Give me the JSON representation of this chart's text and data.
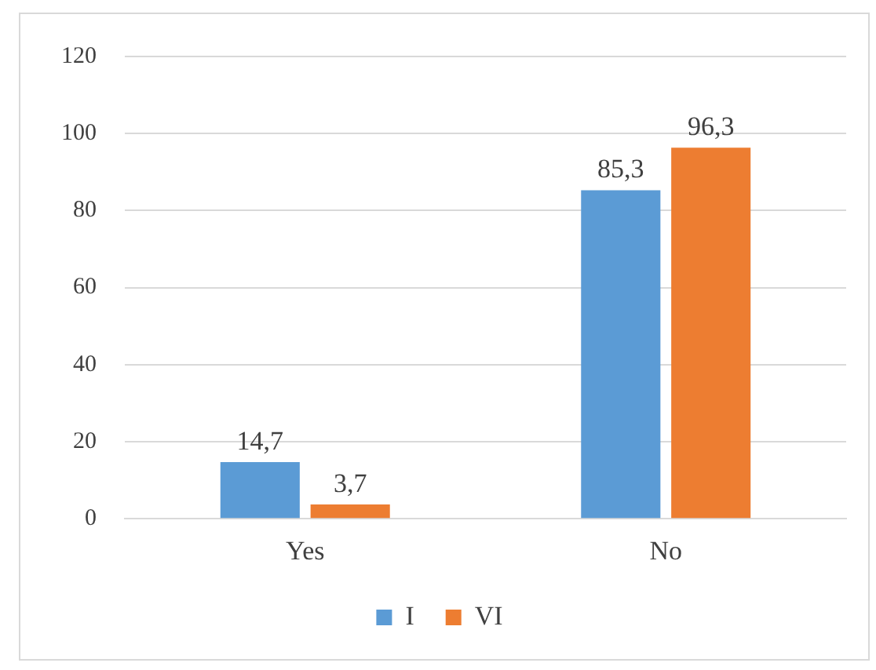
{
  "chart_data": {
    "type": "bar",
    "categories": [
      "Yes",
      "No"
    ],
    "series": [
      {
        "name": "I",
        "color": "#5b9bd5",
        "values": [
          14.7,
          85.3
        ],
        "value_labels": [
          "14,7",
          "85,3"
        ]
      },
      {
        "name": "VI",
        "color": "#ed7d31",
        "values": [
          3.7,
          96.3
        ],
        "value_labels": [
          "3,7",
          "96,3"
        ]
      }
    ],
    "ylim": [
      0,
      120
    ],
    "yticks": [
      0,
      20,
      40,
      60,
      80,
      100,
      120
    ],
    "grid": "y",
    "legend": "bottom"
  }
}
